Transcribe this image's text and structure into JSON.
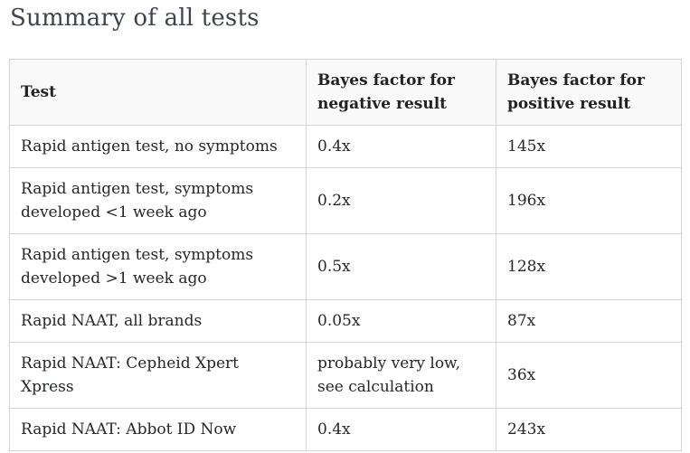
{
  "page": {
    "title": "Summary of all tests"
  },
  "table": {
    "columns": [
      "Test",
      "Bayes factor for negative result",
      "Bayes factor for positive result"
    ],
    "rows": [
      [
        "Rapid antigen test, no symptoms",
        "0.4x",
        "145x"
      ],
      [
        "Rapid antigen test, symptoms developed <1 week ago",
        "0.2x",
        "196x"
      ],
      [
        "Rapid antigen test, symptoms developed >1 week ago",
        "0.5x",
        "128x"
      ],
      [
        "Rapid NAAT, all brands",
        "0.05x",
        "87x"
      ],
      [
        "Rapid NAAT: Cepheid Xpert Xpress",
        "probably very low, see calculation",
        "36x"
      ],
      [
        "Rapid NAAT: Abbot ID Now",
        "0.4x",
        "243x"
      ]
    ]
  },
  "colors": {
    "title_text": "#3d4450",
    "body_text": "#26272a",
    "border": "#d4d4d4",
    "header_background": "#f9f9f9"
  }
}
